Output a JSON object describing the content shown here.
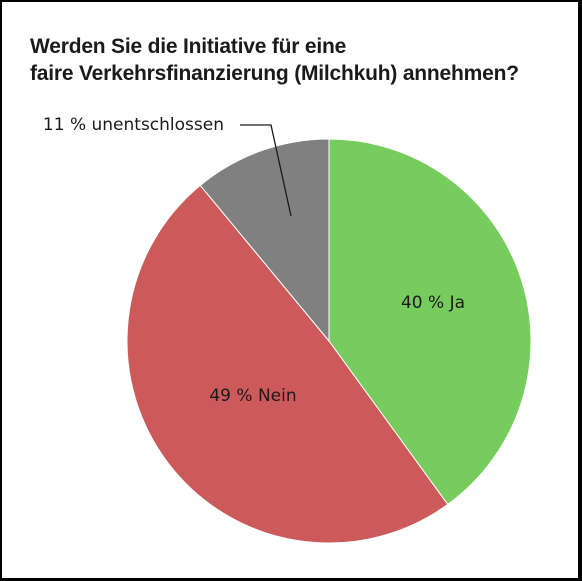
{
  "chart_data": {
    "type": "pie",
    "title_lines": [
      "Werden Sie die Initiative für eine",
      "faire Verkehrsfinanzierung (Milchkuh) annehmen?"
    ],
    "slices": [
      {
        "label": "40 % Ja",
        "value": 40,
        "color": "#77cc5e"
      },
      {
        "label": "49 % Nein",
        "value": 49,
        "color": "#cc5a5a"
      },
      {
        "label": "11 % unentschlossen",
        "value": 11,
        "color": "#808080"
      }
    ],
    "start": "12 o'clock",
    "direction": "clockwise",
    "legend": "none"
  }
}
